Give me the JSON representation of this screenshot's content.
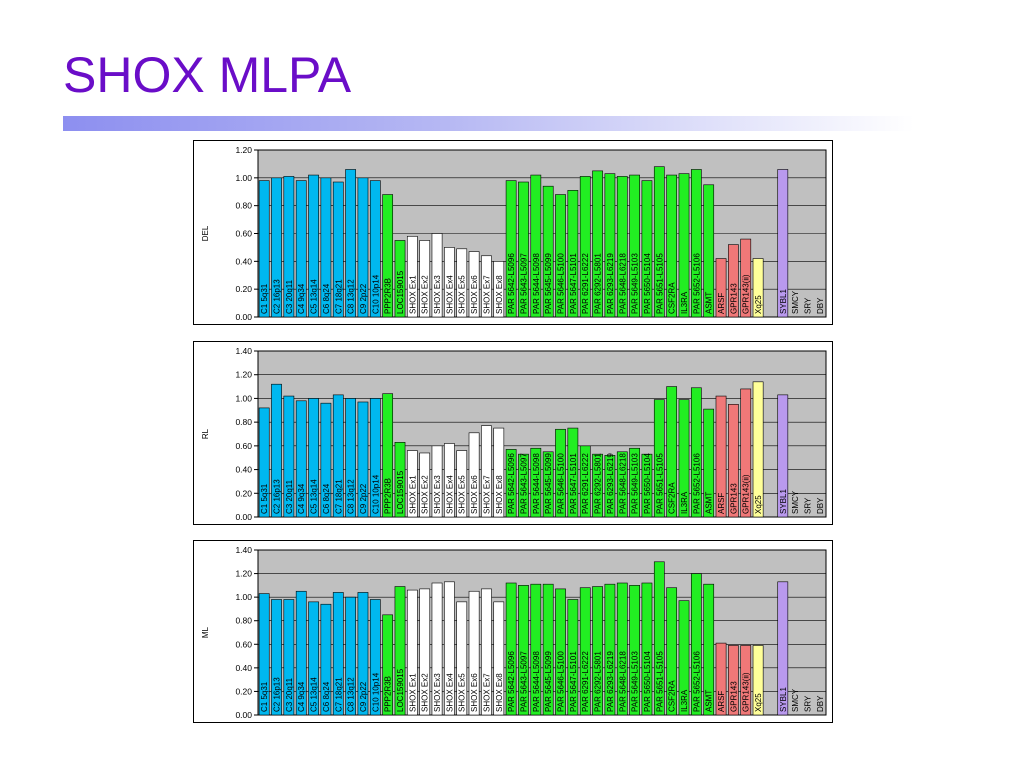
{
  "slide": {
    "title": "SHOX MLPA"
  },
  "colors": {
    "blue": "#00b8f0",
    "green": "#22ee22",
    "white": "#ffffff",
    "red": "#f07878",
    "yellow": "#ffff99",
    "purple": "#b999ee",
    "plot_bg": "#c0c0c0",
    "title": "#6a0dc8"
  },
  "chart_data": [
    {
      "type": "bar",
      "ylabel": "DEL",
      "ylim": [
        0,
        1.2
      ],
      "yticks": [
        "0.00",
        "0.20",
        "0.40",
        "0.60",
        "0.80",
        "1.00",
        "1.20"
      ],
      "grid": true,
      "categories": [
        "C1 5q31",
        "C2 16p13",
        "C3 20q11",
        "C4 9q34",
        "C5 13q14",
        "C6 8q24",
        "C7 18q21",
        "C8 13q12",
        "C9 2p22",
        "C10 10p14",
        "PPP2R3B",
        "LOC159015",
        "SHOX Ex1",
        "SHOX Ex2",
        "SHOX Ex3",
        "SHOX Ex4",
        "SHOX Ex5",
        "SHOX Ex6",
        "SHOX Ex7",
        "SHOX Ex8",
        "PAR 5642-L5096",
        "PAR 5643-L5097",
        "PAR 5644-L5098",
        "PAR 5645-L5099",
        "PAR 5646-L5100",
        "PAR 5647-L5101",
        "PAR 6291-L6222",
        "PAR 6292-L5801",
        "PAR 6293-L6219",
        "PAR 5648-L6218",
        "PAR 5649-L5103",
        "PAR 5650-L5104",
        "PAR 5651-L5105",
        "CSF2RA",
        "IL3RA",
        "PAR 5652-L5106",
        "ASMT",
        "ARSF",
        "GPR143",
        "GPR143(ii)",
        "Xq25",
        "",
        "SYBL1",
        "SMCY",
        "SRY",
        "DBY"
      ],
      "colors": [
        "blue",
        "blue",
        "blue",
        "blue",
        "blue",
        "blue",
        "blue",
        "blue",
        "blue",
        "blue",
        "green",
        "green",
        "white",
        "white",
        "white",
        "white",
        "white",
        "white",
        "white",
        "white",
        "green",
        "green",
        "green",
        "green",
        "green",
        "green",
        "green",
        "green",
        "green",
        "green",
        "green",
        "green",
        "green",
        "green",
        "green",
        "green",
        "green",
        "red",
        "red",
        "red",
        "yellow",
        "none",
        "purple",
        "none",
        "none",
        "none"
      ],
      "values": [
        0.98,
        1.0,
        1.01,
        0.98,
        1.02,
        1.0,
        0.97,
        1.06,
        1.0,
        0.98,
        0.88,
        0.55,
        0.58,
        0.55,
        0.6,
        0.5,
        0.49,
        0.47,
        0.44,
        0.4,
        0.98,
        0.97,
        1.02,
        0.94,
        0.88,
        0.91,
        1.01,
        1.05,
        1.03,
        1.01,
        1.02,
        0.98,
        1.08,
        1.02,
        1.03,
        1.06,
        0.95,
        0.42,
        0.52,
        0.56,
        0.42,
        0,
        1.06,
        0,
        0,
        0
      ]
    },
    {
      "type": "bar",
      "ylabel": "RL",
      "ylim": [
        0,
        1.4
      ],
      "yticks": [
        "0.00",
        "0.20",
        "0.40",
        "0.60",
        "0.80",
        "1.00",
        "1.20",
        "1.40"
      ],
      "grid": true,
      "categories": [
        "C1 5q31",
        "C2 16p13",
        "C3 20q11",
        "C4 9q34",
        "C5 13q14",
        "C6 8q24",
        "C7 18q21",
        "C8 13q12",
        "C9 2p22",
        "C10 10p14",
        "PPP2R3B",
        "LOC159015",
        "SHOX Ex1",
        "SHOX Ex2",
        "SHOX Ex3",
        "SHOX Ex4",
        "SHOX Ex5",
        "SHOX Ex6",
        "SHOX Ex7",
        "SHOX Ex8",
        "PAR 5642-L5096",
        "PAR 5643-L5097",
        "PAR 5644-L5098",
        "PAR 5645-L5099",
        "PAR 5646-L5100",
        "PAR 5647-L5101",
        "PAR 6291-L6222",
        "PAR 6292-L5801",
        "PAR 6293-L6219",
        "PAR 5648-L6218",
        "PAR 5649-L5103",
        "PAR 5650-L5104",
        "PAR 5651-L5105",
        "CSF2RA",
        "IL3RA",
        "PAR 5652-L5106",
        "ASMT",
        "ARSF",
        "GPR143",
        "GPR143(ii)",
        "Xq25",
        "",
        "SYBL1",
        "SMCY",
        "SRY",
        "DBY"
      ],
      "colors": [
        "blue",
        "blue",
        "blue",
        "blue",
        "blue",
        "blue",
        "blue",
        "blue",
        "blue",
        "blue",
        "green",
        "green",
        "white",
        "white",
        "white",
        "white",
        "white",
        "white",
        "white",
        "white",
        "green",
        "green",
        "green",
        "green",
        "green",
        "green",
        "green",
        "green",
        "green",
        "green",
        "green",
        "green",
        "green",
        "green",
        "green",
        "green",
        "green",
        "red",
        "red",
        "red",
        "yellow",
        "none",
        "purple",
        "none",
        "none",
        "none"
      ],
      "values": [
        0.92,
        1.12,
        1.02,
        0.98,
        1.0,
        0.96,
        1.03,
        1.0,
        0.97,
        1.0,
        1.04,
        0.63,
        0.56,
        0.54,
        0.6,
        0.62,
        0.56,
        0.71,
        0.77,
        0.75,
        0.57,
        0.53,
        0.58,
        0.55,
        0.74,
        0.75,
        0.6,
        0.53,
        0.52,
        0.55,
        0.58,
        0.53,
        0.99,
        1.1,
        0.99,
        1.09,
        0.91,
        1.02,
        0.95,
        1.08,
        1.14,
        0,
        1.03,
        0,
        0,
        0
      ]
    },
    {
      "type": "bar",
      "ylabel": "ML",
      "ylim": [
        0,
        1.4
      ],
      "yticks": [
        "0.00",
        "0.20",
        "0.40",
        "0.60",
        "0.80",
        "1.00",
        "1.20",
        "1.40"
      ],
      "grid": true,
      "categories": [
        "C1 5q31",
        "C2 16p13",
        "C3 20q11",
        "C4 9q34",
        "C5 13q14",
        "C6 8q24",
        "C7 18q21",
        "C8 13q12",
        "C9 2p22",
        "C10 10p14",
        "PPP2R3B",
        "LOC159015",
        "SHOX Ex1",
        "SHOX Ex2",
        "SHOX Ex3",
        "SHOX Ex4",
        "SHOX Ex5",
        "SHOX Ex6",
        "SHOX Ex7",
        "SHOX Ex8",
        "PAR 5642-L5096",
        "PAR 5643-L5097",
        "PAR 5644-L5098",
        "PAR 5645-L5099",
        "PAR 5646-L5100",
        "PAR 5647-L5101",
        "PAR 6291-L6222",
        "PAR 6292-L5801",
        "PAR 6293-L6219",
        "PAR 5648-L6218",
        "PAR 5649-L5103",
        "PAR 5650-L5104",
        "PAR 5651-L5105",
        "CSF2RA",
        "IL3RA",
        "PAR 5652-L5106",
        "ASMT",
        "ARSF",
        "GPR143",
        "GPR143(ii)",
        "Xq25",
        "",
        "SYBL1",
        "SMCY",
        "SRY",
        "DBY"
      ],
      "colors": [
        "blue",
        "blue",
        "blue",
        "blue",
        "blue",
        "blue",
        "blue",
        "blue",
        "blue",
        "blue",
        "green",
        "green",
        "white",
        "white",
        "white",
        "white",
        "white",
        "white",
        "white",
        "white",
        "green",
        "green",
        "green",
        "green",
        "green",
        "green",
        "green",
        "green",
        "green",
        "green",
        "green",
        "green",
        "green",
        "green",
        "green",
        "green",
        "green",
        "red",
        "red",
        "red",
        "yellow",
        "none",
        "purple",
        "none",
        "none",
        "none"
      ],
      "values": [
        1.03,
        0.98,
        0.98,
        1.05,
        0.96,
        0.94,
        1.04,
        1.0,
        1.04,
        0.98,
        0.85,
        1.09,
        1.06,
        1.07,
        1.12,
        1.13,
        0.96,
        1.05,
        1.07,
        0.96,
        1.12,
        1.1,
        1.11,
        1.11,
        1.07,
        0.98,
        1.08,
        1.09,
        1.11,
        1.12,
        1.1,
        1.12,
        1.3,
        1.08,
        0.97,
        1.2,
        1.11,
        0.61,
        0.59,
        0.59,
        0.59,
        0,
        1.13,
        0,
        0,
        0
      ]
    }
  ]
}
